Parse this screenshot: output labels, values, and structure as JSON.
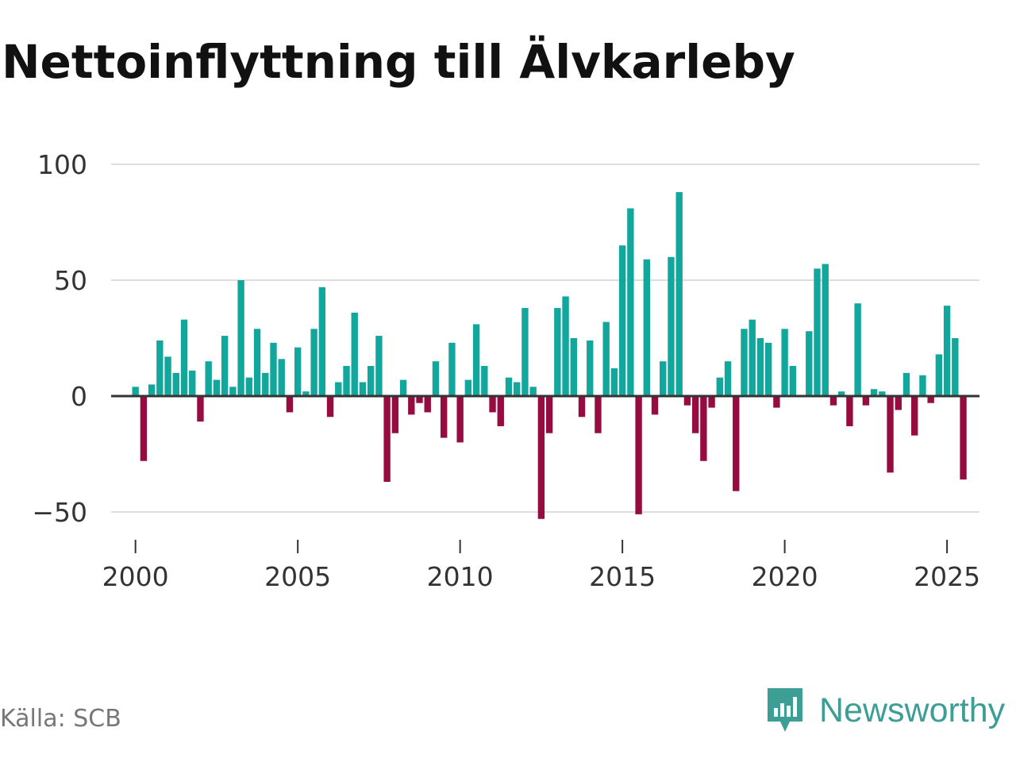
{
  "chart_data": {
    "type": "bar",
    "title": "Nettoinflyttning till Älvkarleby",
    "source": "Källa: SCB",
    "brand": "Newsworthy",
    "xlabel": "",
    "ylabel": "",
    "x_start": 2000.0,
    "x_step": 0.25,
    "xlim": [
      1999.25,
      2026.0
    ],
    "ylim": [
      -55,
      100
    ],
    "yticks": [
      100,
      50,
      0,
      -50
    ],
    "ytick_labels": [
      "100",
      "50",
      "0",
      "−50"
    ],
    "xticks": [
      2000,
      2005,
      2010,
      2015,
      2020,
      2025
    ],
    "xtick_labels": [
      "2000",
      "2005",
      "2010",
      "2015",
      "2020",
      "2025"
    ],
    "colors": {
      "positive": "#12a79d",
      "negative": "#960c41",
      "grid": "#dddddd",
      "zero": "#333333"
    },
    "values": [
      4,
      -28,
      5,
      24,
      17,
      10,
      33,
      11,
      -11,
      15,
      7,
      26,
      4,
      50,
      8,
      29,
      10,
      23,
      16,
      -7,
      21,
      2,
      29,
      47,
      -9,
      6,
      13,
      36,
      6,
      13,
      26,
      -37,
      -16,
      7,
      -8,
      -3,
      -7,
      15,
      -18,
      23,
      -20,
      7,
      31,
      13,
      -7,
      -13,
      8,
      6,
      38,
      4,
      -53,
      -16,
      38,
      43,
      25,
      -9,
      24,
      -16,
      32,
      12,
      65,
      81,
      -51,
      59,
      -8,
      15,
      60,
      88,
      -4,
      -16,
      -28,
      -5,
      8,
      15,
      -41,
      29,
      33,
      25,
      23,
      -5,
      29,
      13,
      0,
      28,
      55,
      57,
      -4,
      2,
      -13,
      40,
      -4,
      3,
      2,
      -33,
      -6,
      10,
      -17,
      9,
      -3,
      18,
      39,
      25,
      -36
    ]
  }
}
